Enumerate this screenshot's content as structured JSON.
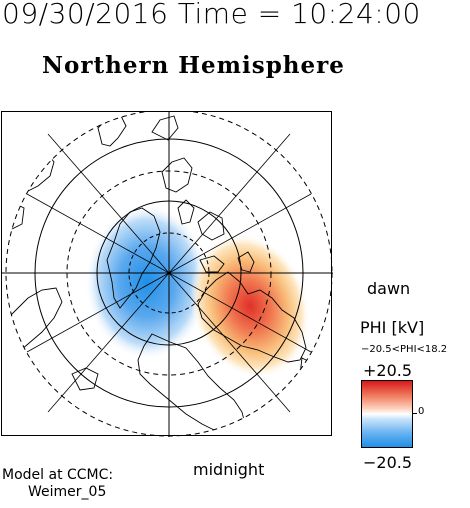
{
  "header": {
    "timestamp": "09/30/2016 Time = 10:24:00",
    "title": "Northern Hemisphere"
  },
  "map": {
    "projection": "polar",
    "pole": "north",
    "potential_pattern": {
      "negative_color": "#1f8fe6",
      "positive_color": "#d7191c"
    }
  },
  "labels": {
    "dawn": "dawn",
    "midnight": "midnight",
    "model_line1": "Model at CCMC:",
    "model_line2": "Weimer_05"
  },
  "colorbar": {
    "title": "PHI [kV]",
    "range_text": "−20.5<PHI<18.2",
    "max_label": "+20.5",
    "min_label": "−20.5",
    "zero_label": "0",
    "max_value": 20.5,
    "min_value": -20.5,
    "colors": {
      "max": "#d7191c",
      "mid": "#ffffff",
      "min": "#1f8fe6"
    }
  }
}
